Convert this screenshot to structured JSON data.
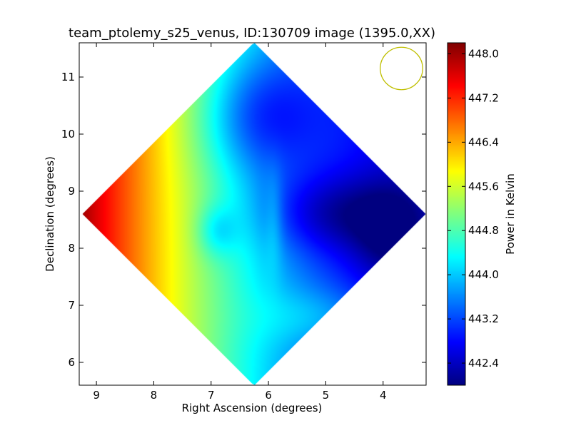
{
  "chart_data": {
    "type": "heatmap",
    "title": "team_ptolemy_s25_venus, ID:130709 image (1395.0,XX)",
    "xlabel": "Right Ascension (degrees)",
    "ylabel": "Declination (degrees)",
    "xlim": [
      9.3,
      3.25
    ],
    "ylim": [
      5.6,
      11.6
    ],
    "x_inverted": true,
    "xticks": [
      9,
      8,
      7,
      6,
      5,
      4
    ],
    "yticks": [
      6,
      7,
      8,
      9,
      10,
      11
    ],
    "colorbar": {
      "label": "Power in Kelvin",
      "range": [
        442.0,
        448.2
      ],
      "ticks": [
        "448.0",
        "447.2",
        "446.4",
        "445.6",
        "444.8",
        "444.0",
        "443.2",
        "442.4"
      ],
      "colormap": "jet"
    },
    "map_region": {
      "shape": "diamond",
      "center": [
        6.25,
        8.6
      ],
      "half_width_ra": 3.0,
      "half_height_dec": 3.0
    },
    "value_structure": {
      "east_edge_value": 448.0,
      "west_edge_value": 442.5,
      "north_blue_blob_value": 443.3,
      "southwest_lobe_value": 444.4,
      "east_blob_value": 443.2,
      "dark_edge_value": 442.6
    },
    "beam": {
      "ra": 3.68,
      "dec": 11.15,
      "radius_deg": 0.37,
      "color": "#bfbf00"
    },
    "grid": false
  }
}
